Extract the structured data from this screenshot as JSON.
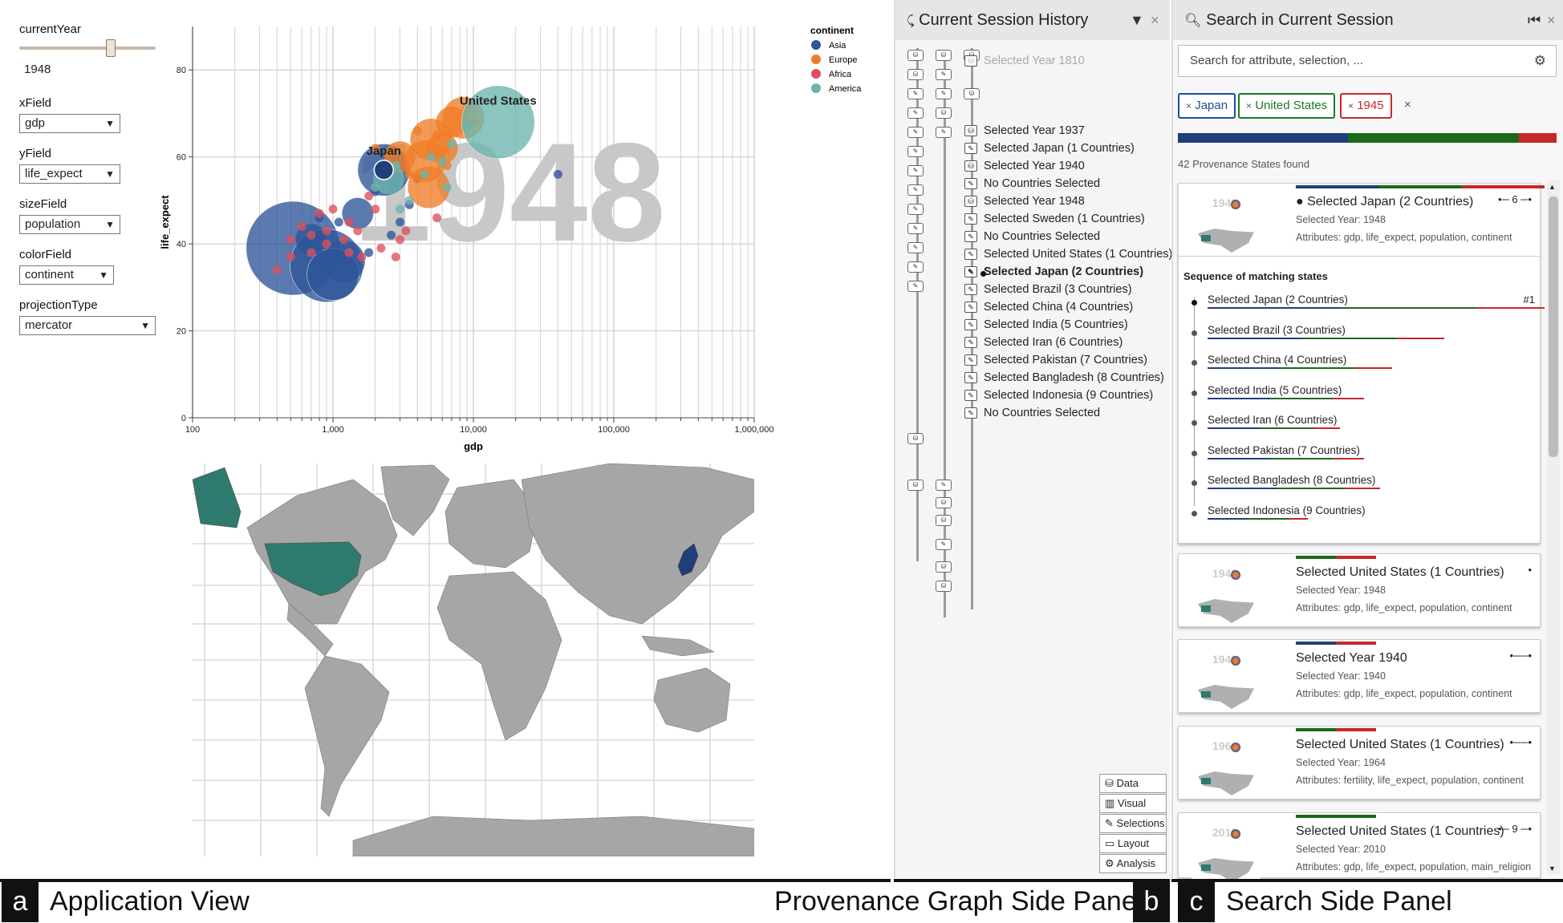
{
  "controls": {
    "year_label": "currentYear",
    "year_value": "1948",
    "xfield_label": "xField",
    "xfield_value": "gdp",
    "yfield_label": "yField",
    "yfield_value": "life_expect",
    "sizefield_label": "sizeField",
    "sizefield_value": "population",
    "colorfield_label": "colorField",
    "colorfield_value": "continent",
    "projection_label": "projectionType",
    "projection_value": "mercator"
  },
  "chart_data": {
    "type": "scatter",
    "title": "",
    "watermark": "1948",
    "xlabel": "gdp",
    "ylabel": "life_expect",
    "x_scale": "log",
    "xlim": [
      100,
      1000000
    ],
    "ylim": [
      0,
      90
    ],
    "x_ticks": [
      "100",
      "1,000",
      "10,000",
      "100,000",
      "1,000,000"
    ],
    "y_ticks": [
      "0",
      "20",
      "40",
      "60",
      "80"
    ],
    "grid": true,
    "legend": {
      "title": "continent",
      "placement": "top-right",
      "items": [
        {
          "name": "Asia",
          "color": "#2d5599"
        },
        {
          "name": "Europe",
          "color": "#f07c26"
        },
        {
          "name": "Africa",
          "color": "#dd4f5c"
        },
        {
          "name": "America",
          "color": "#6bb5ad"
        }
      ]
    },
    "annotations": [
      "United States",
      "Japan"
    ],
    "series": [
      {
        "name": "Asia",
        "points": [
          [
            520,
            39,
            9
          ],
          [
            900,
            35,
            7
          ],
          [
            1000,
            33,
            5
          ],
          [
            1200,
            36,
            4
          ],
          [
            700,
            41,
            3
          ],
          [
            2300,
            57,
            5
          ],
          [
            1500,
            47,
            3
          ],
          [
            3000,
            45,
            2
          ],
          [
            2000,
            52,
            2
          ],
          [
            4000,
            55,
            2
          ],
          [
            1800,
            38,
            2
          ],
          [
            2600,
            42,
            2
          ],
          [
            40000,
            56,
            1
          ],
          [
            1100,
            45,
            2
          ],
          [
            800,
            46,
            2
          ],
          [
            3500,
            49,
            2
          ]
        ]
      },
      {
        "name": "Europe",
        "points": [
          [
            5000,
            64,
            4
          ],
          [
            7000,
            68,
            3
          ],
          [
            8500,
            69,
            4
          ],
          [
            4500,
            59,
            4
          ],
          [
            3000,
            60,
            3
          ],
          [
            2500,
            61,
            2
          ],
          [
            6000,
            62,
            3
          ],
          [
            4000,
            66,
            2
          ],
          [
            10000,
            68,
            2
          ],
          [
            3500,
            56,
            2
          ],
          [
            6500,
            58,
            2
          ],
          [
            2000,
            62,
            2
          ],
          [
            4800,
            53,
            4
          ],
          [
            9000,
            71,
            2
          ],
          [
            5500,
            65,
            2
          ]
        ]
      },
      {
        "name": "Africa",
        "points": [
          [
            400,
            34,
            2
          ],
          [
            500,
            37,
            2
          ],
          [
            700,
            38,
            2
          ],
          [
            900,
            40,
            2
          ],
          [
            1200,
            41,
            2
          ],
          [
            1500,
            43,
            2
          ],
          [
            600,
            44,
            2
          ],
          [
            800,
            47,
            2
          ],
          [
            1300,
            45,
            2
          ],
          [
            2000,
            48,
            2
          ],
          [
            3000,
            41,
            2
          ],
          [
            1600,
            37,
            2
          ],
          [
            2200,
            39,
            2
          ],
          [
            2800,
            37,
            2
          ],
          [
            700,
            42,
            2
          ],
          [
            1000,
            48,
            2
          ],
          [
            500,
            41,
            2
          ],
          [
            1800,
            51,
            2
          ],
          [
            900,
            43,
            2
          ],
          [
            1300,
            38,
            2
          ],
          [
            5500,
            46,
            2
          ],
          [
            3300,
            43,
            2
          ]
        ]
      },
      {
        "name": "America",
        "points": [
          [
            15000,
            68,
            7
          ],
          [
            2500,
            55,
            3
          ],
          [
            3500,
            50,
            2
          ],
          [
            4500,
            56,
            2
          ],
          [
            7000,
            63,
            2
          ],
          [
            3000,
            48,
            2
          ],
          [
            6000,
            59,
            2
          ],
          [
            2000,
            53,
            2
          ],
          [
            5000,
            60,
            2
          ],
          [
            9000,
            67,
            2
          ],
          [
            2800,
            58,
            2
          ],
          [
            6500,
            53,
            2
          ]
        ]
      }
    ]
  },
  "history": {
    "title": "Current Session History",
    "items": [
      {
        "label": "Selected Year 1810",
        "type": "data"
      },
      {
        "label": "Selected Year 1937",
        "type": "data"
      },
      {
        "label": "Selected Japan (1 Countries)",
        "type": "selection"
      },
      {
        "label": "Selected Year 1940",
        "type": "data"
      },
      {
        "label": "No Countries Selected",
        "type": "selection"
      },
      {
        "label": "Selected Year 1948",
        "type": "data"
      },
      {
        "label": "Selected Sweden (1 Countries)",
        "type": "selection"
      },
      {
        "label": "No Countries Selected",
        "type": "selection"
      },
      {
        "label": "Selected United States (1 Countries)",
        "type": "selection"
      },
      {
        "label": "Selected Japan (2 Countries)",
        "type": "selection"
      },
      {
        "label": "Selected Brazil (3 Countries)",
        "type": "selection"
      },
      {
        "label": "Selected China (4 Countries)",
        "type": "selection"
      },
      {
        "label": "Selected India (5 Countries)",
        "type": "selection"
      },
      {
        "label": "Selected Iran (6 Countries)",
        "type": "selection"
      },
      {
        "label": "Selected Pakistan (7 Countries)",
        "type": "selection"
      },
      {
        "label": "Selected Bangladesh (8 Countries)",
        "type": "selection"
      },
      {
        "label": "Selected Indonesia (9 Countries)",
        "type": "selection"
      },
      {
        "label": "No Countries Selected",
        "type": "selection"
      }
    ],
    "filters": [
      "Data",
      "Visual",
      "Selections",
      "Layout",
      "Analysis"
    ]
  },
  "search": {
    "title": "Search in Current Session",
    "placeholder": "Search for attribute, selection, ...",
    "tags": [
      {
        "label": "Japan",
        "color": "#1f4e96"
      },
      {
        "label": "United States",
        "color": "#1b7a2a"
      },
      {
        "label": "1945",
        "color": "#c62828"
      }
    ],
    "clear": "×",
    "found": "42 Provenance States found",
    "cards": [
      {
        "title": "Selected Japan (2 Countries)",
        "year": "Selected Year: 1948",
        "attrs": "Attributes: gdp, life_expect, population, continent",
        "count": "6",
        "thumb_year": "1948",
        "rank": "#1",
        "sequence_title": "Sequence of matching states",
        "sequence": [
          "Selected Japan (2 Countries)",
          "Selected Brazil (3 Countries)",
          "Selected China (4 Countries)",
          "Selected India (5 Countries)",
          "Selected Iran (6 Countries)",
          "Selected Pakistan (7 Countries)",
          "Selected Bangladesh (8 Countries)",
          "Selected Indonesia (9 Countries)"
        ]
      },
      {
        "title": "Selected United States (1 Countries)",
        "year": "Selected Year: 1948",
        "attrs": "Attributes: gdp, life_expect, population, continent",
        "thumb_year": "1948"
      },
      {
        "title": "Selected Year 1940",
        "year": "Selected Year: 1940",
        "attrs": "Attributes: gdp, life_expect, population, continent",
        "thumb_year": "1940"
      },
      {
        "title": "Selected United States (1 Countries)",
        "year": "Selected Year: 1964",
        "attrs": "Attributes: fertility, life_expect, population, continent",
        "thumb_year": "1964"
      },
      {
        "title": "Selected United States (1 Countries)",
        "year": "Selected Year: 2010",
        "attrs": "Attributes: gdp, life_expect, population, main_religion",
        "count": "9",
        "thumb_year": "2010"
      }
    ]
  },
  "captions": {
    "a_letter": "a",
    "a_label": "Application View",
    "b_letter": "b",
    "b_label": "Provenance Graph Side Panel",
    "c_letter": "c",
    "c_label": "Search Side Panel"
  },
  "colors": {
    "asia": "#2d5599",
    "europe": "#f07c26",
    "africa": "#dd4f5c",
    "america": "#6bb5ad",
    "us_map": "#2e7a6e",
    "japan_map": "#1f3f7a",
    "land": "#a6a6a6"
  }
}
